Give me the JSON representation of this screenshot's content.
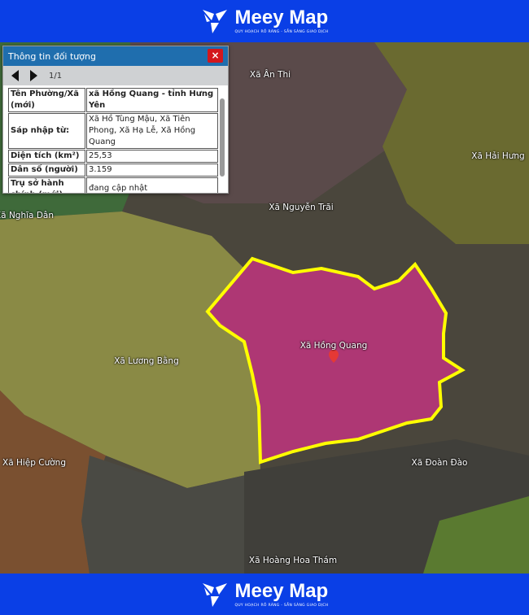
{
  "brand": {
    "name": "Meey Map",
    "tagline": "QUY HOẠCH RÕ RÀNG - SẴN SÀNG GIAO DỊCH",
    "color": "#0a3fe6"
  },
  "panel": {
    "title": "Thông tin đối tượng",
    "close": "×",
    "page": "1/1",
    "rows": [
      {
        "key": "Tên Phường/Xã (mới)",
        "value": "xã Hồng Quang - tỉnh Hưng Yên"
      },
      {
        "key": "Sáp nhập từ:",
        "value": "Xã Hồ Tùng Mậu, Xã Tiên Phong, Xã Hạ Lễ, Xã Hồng Quang"
      },
      {
        "key": "Diện tích (km²)",
        "value": "25,53"
      },
      {
        "key": "Dân số (người)",
        "value": "3.159"
      },
      {
        "key": "Trụ sở hành chính (mới)",
        "value": "đang cập nhật"
      }
    ]
  },
  "map": {
    "highlight_color": "#ffff00",
    "fill_color": "#c0357e",
    "labels": [
      "Xã Ân Thi",
      "Xã Hải Hưng",
      "Xã Nghĩa Dân",
      "Xã Nguyễn Trãi",
      "Xã Hồng Quang",
      "Xã Lương Bằng",
      "Xã Hiệp Cường",
      "Xã Đoàn Đào",
      "Xã Hoàng Hoa Thám"
    ]
  }
}
